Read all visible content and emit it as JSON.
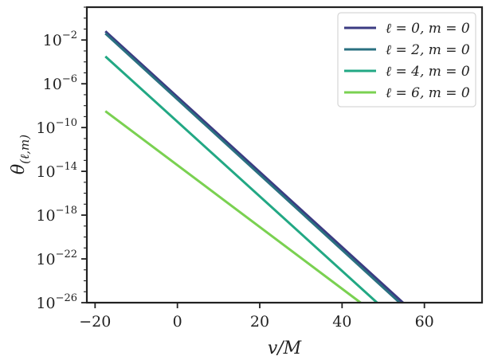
{
  "chart_data": {
    "type": "line",
    "title": "",
    "xlabel": "v/M",
    "ylabel": "θ_(ℓ,m)",
    "ylabel_parts": {
      "main": "θ",
      "sub": "(ℓ,m)"
    },
    "xlim": [
      -22,
      74
    ],
    "ylim_log10": [
      -26,
      1
    ],
    "yscale": "log",
    "x_ticks": [
      -20,
      0,
      20,
      40,
      60
    ],
    "x_tick_labels": [
      "−20",
      "0",
      "20",
      "40",
      "60"
    ],
    "y_ticks_log10": [
      -2,
      -6,
      -10,
      -14,
      -18,
      -22,
      -26
    ],
    "y_tick_base": "10",
    "y_tick_exponents": [
      "−2",
      "−6",
      "−10",
      "−14",
      "−18",
      "−22",
      "−26"
    ],
    "grid": false,
    "legend_position": "top-right",
    "series": [
      {
        "name": "ℓ = 0, m = 0",
        "color": "#3b3b82",
        "x": [
          -17.5,
          54.8
        ],
        "y_log10": [
          -1.2,
          -26
        ]
      },
      {
        "name": "ℓ = 2, m = 0",
        "color": "#2a7080",
        "x": [
          -17.5,
          54.0
        ],
        "y_log10": [
          -1.4,
          -26
        ]
      },
      {
        "name": "ℓ = 4, m = 0",
        "color": "#22a884",
        "x": [
          -17.5,
          48.5
        ],
        "y_log10": [
          -3.5,
          -26
        ]
      },
      {
        "name": "ℓ = 6, m = 0",
        "color": "#7ad151",
        "x": [
          -17.5,
          44.5
        ],
        "y_log10": [
          -8.5,
          -26
        ]
      }
    ]
  }
}
